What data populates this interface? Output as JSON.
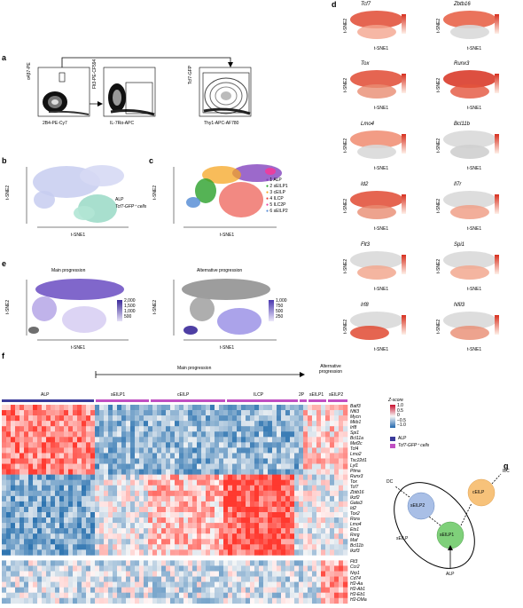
{
  "panels": {
    "a": {
      "label": "a",
      "plots": [
        {
          "ylabel": "α4β7-PE",
          "xlabel": "2B4-PE-Cy7",
          "yticks": [
            "10⁵",
            "10⁴",
            "10³",
            "0"
          ],
          "xticks": [
            "0",
            "10³",
            "10⁴",
            "10⁵"
          ]
        },
        {
          "ylabel": "Flt3-PE-CF594",
          "xlabel": "IL-7Rα-APC",
          "yticks": [
            "10⁵",
            "10⁴",
            "10³",
            "0"
          ],
          "xticks": [
            "0",
            "10³",
            "10⁴",
            "10⁵"
          ]
        },
        {
          "ylabel": "Tcf7-GFP",
          "xlabel": "Thy1-APC-AF780",
          "yticks": [
            "10⁵",
            "10⁴",
            "10³",
            "0"
          ],
          "xticks": [
            "0",
            "10³",
            "10⁴",
            "10⁵"
          ]
        }
      ]
    },
    "b": {
      "label": "b",
      "xlabel": "t-SNE1",
      "ylabel": "t-SNE2",
      "legend": [
        "ALP",
        "Tcf7-GFP⁺ cells"
      ],
      "colors": [
        "#aab3e8",
        "#8fd9c4"
      ]
    },
    "c": {
      "label": "c",
      "xlabel": "t-SNE1",
      "ylabel": "t-SNE2",
      "legend": [
        "1 ALP",
        "2 sEILP1",
        "3 cEILP",
        "4 ILCP",
        "5 ILC2P",
        "6 sEILP2"
      ],
      "colors": [
        "#7b3fb3",
        "#2aa02a",
        "#f5a623",
        "#e8413c",
        "#e83fa0",
        "#5b8fd6"
      ]
    },
    "d": {
      "label": "d",
      "xlabel": "t-SNE1",
      "ylabel": "t-SNE2",
      "xticks": [
        "−20",
        "−10",
        "0",
        "10",
        "20",
        "30"
      ],
      "yticks": [
        "20",
        "10",
        "0",
        "−10",
        "−20"
      ],
      "genes": [
        "Tcf7",
        "Zbtb16",
        "Tox",
        "Runx3",
        "Lmo4",
        "Bcl11b",
        "Id2",
        "Il7r",
        "Flt3",
        "Spi1",
        "Irf8",
        "Nfil3"
      ],
      "scales": [
        [
          "4",
          "3",
          "2",
          "1",
          "0"
        ],
        [
          "5",
          "4",
          "3",
          "2",
          "1",
          "0"
        ],
        [
          "4",
          "3",
          "2",
          "1",
          "0"
        ],
        [
          "4",
          "3",
          "2",
          "1",
          "0"
        ],
        [
          "4",
          "3",
          "2",
          "1",
          "0"
        ],
        [
          "15",
          "10",
          "5",
          "0"
        ],
        [
          "3",
          "2",
          "1",
          "0"
        ],
        [
          "4",
          "3",
          "2",
          "1",
          "0"
        ],
        [
          "8",
          "6",
          "4",
          "2",
          "0"
        ],
        [
          "4",
          "3",
          "2",
          "1",
          "0"
        ],
        [
          "3",
          "2",
          "1",
          "0"
        ],
        [
          "12",
          "9",
          "6",
          "3",
          "0"
        ]
      ]
    },
    "e": {
      "label": "e",
      "titles": [
        "Main progression",
        "Alternative progression"
      ],
      "xlabel": "t-SNE1",
      "ylabel": "t-SNE2",
      "scale_main": [
        "2,000",
        "1,500",
        "1,000",
        "500"
      ],
      "scale_alt": [
        "1,000",
        "750",
        "500",
        "250"
      ]
    },
    "f": {
      "label": "f",
      "main_progression": "Main progression",
      "alt_progression": "Alternative progression",
      "groups": [
        "ALP",
        "sEILP1",
        "cEILP",
        "ILCP",
        "2P",
        "sEILP1",
        "sEILP2"
      ],
      "zscore_title": "Z-score",
      "zscore_ticks": [
        "1.0",
        "0.5",
        "0",
        "−0.5",
        "−1.0"
      ],
      "legend": [
        "ALP",
        "Tcf7-GFP⁺ cells"
      ],
      "genes": [
        "Batf3",
        "Nfil3",
        "Mycn",
        "Mkb1",
        "Irf8",
        "Spi1",
        "Bcl11a",
        "Mef2c",
        "Tcf4",
        "Lmo2",
        "Tsc22d1",
        "Lyl1",
        "Ptma",
        "Runx3",
        "Tox",
        "Tcf7",
        "Zbtb16",
        "Ikzf2",
        "Gata3",
        "Id2",
        "Tox2",
        "Rora",
        "Lmo4",
        "Ets1",
        "Rxrg",
        "Maf",
        "Bcl11b",
        "Ikzf3",
        "Flt3",
        "Ccr2",
        "Nrp1",
        "Cd74",
        "H2-Aa",
        "H2-Ab1",
        "H2-Eb1",
        "H2-DMa"
      ]
    },
    "g": {
      "label": "g",
      "nodes": [
        "sEILP2",
        "cEILP",
        "sEILP1"
      ],
      "labels": [
        "DC",
        "ILC",
        "sEILP",
        "ALP"
      ]
    }
  }
}
